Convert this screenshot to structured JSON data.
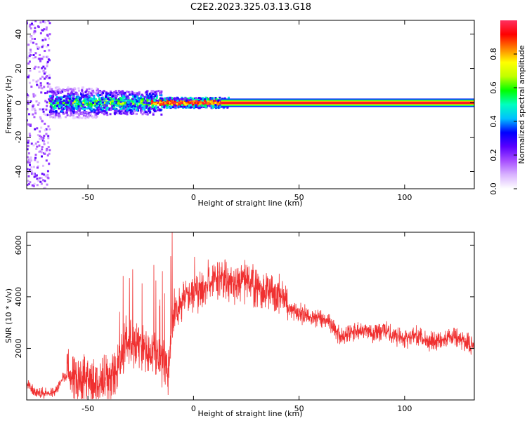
{
  "title": "C2E2.2023.325.03.13.G18",
  "chart_data": [
    {
      "type": "heatmap",
      "xlabel": "Height of straight line (km)",
      "ylabel": "Frequency (Hz)",
      "xlim": [
        -79,
        133
      ],
      "ylim": [
        -50,
        48
      ],
      "xticks": [
        -50,
        0,
        50,
        100
      ],
      "yticks": [
        -40,
        -20,
        0,
        20,
        40
      ],
      "colorbar": {
        "label": "Normalized spectral amplitude",
        "range": [
          0,
          1
        ],
        "ticks": [
          0.0,
          0.2,
          0.4,
          0.6,
          0.8
        ],
        "tick_labels": [
          "0.0",
          "0.2",
          "0.4",
          "0.6",
          "0.8"
        ],
        "colormap": [
          "#ffffff",
          "#d9b3ff",
          "#a64dff",
          "#5a00ff",
          "#0000ff",
          "#00c0ff",
          "#00ffc0",
          "#00ff00",
          "#c0ff00",
          "#ffff00",
          "#ff8000",
          "#ff0000",
          "#ff3060"
        ]
      },
      "band": {
        "center_hz": 0,
        "coherent_from_km": 15,
        "core_halfwidth_hz": 1,
        "outer_halfwidth_hz": 2.5
      },
      "grid": false
    },
    {
      "type": "line",
      "xlabel": "Height of straight line (km)",
      "ylabel": "SNR (10 * v/v)",
      "xlim": [
        -79,
        133
      ],
      "ylim": [
        0,
        6500
      ],
      "xticks": [
        -50,
        0,
        50,
        100
      ],
      "yticks": [
        2000,
        4000,
        6000
      ],
      "series": [
        {
          "color": "#f03030",
          "x": [
            -79,
            -75,
            -70,
            -65,
            -62,
            -58,
            -55,
            -50,
            -45,
            -40,
            -35,
            -32,
            -30,
            -25,
            -20,
            -15,
            -12,
            -10,
            -8,
            -5,
            -2,
            0,
            5,
            10,
            15,
            20,
            25,
            30,
            35,
            40,
            43,
            45,
            50,
            55,
            60,
            65,
            70,
            75,
            80,
            85,
            90,
            95,
            100,
            105,
            110,
            115,
            120,
            125,
            130,
            133
          ],
          "y": [
            600,
            300,
            250,
            350,
            900,
            1000,
            950,
            600,
            500,
            800,
            1200,
            2500,
            2300,
            2100,
            1800,
            1600,
            1200,
            3100,
            3500,
            3900,
            4000,
            4100,
            4300,
            4600,
            4700,
            4500,
            4600,
            4300,
            4200,
            4100,
            4000,
            3600,
            3400,
            3200,
            3200,
            3000,
            2400,
            2600,
            2800,
            2600,
            2700,
            2500,
            2400,
            2500,
            2300,
            2300,
            2400,
            2400,
            2200,
            2100
          ]
        }
      ],
      "grid": false
    }
  ]
}
